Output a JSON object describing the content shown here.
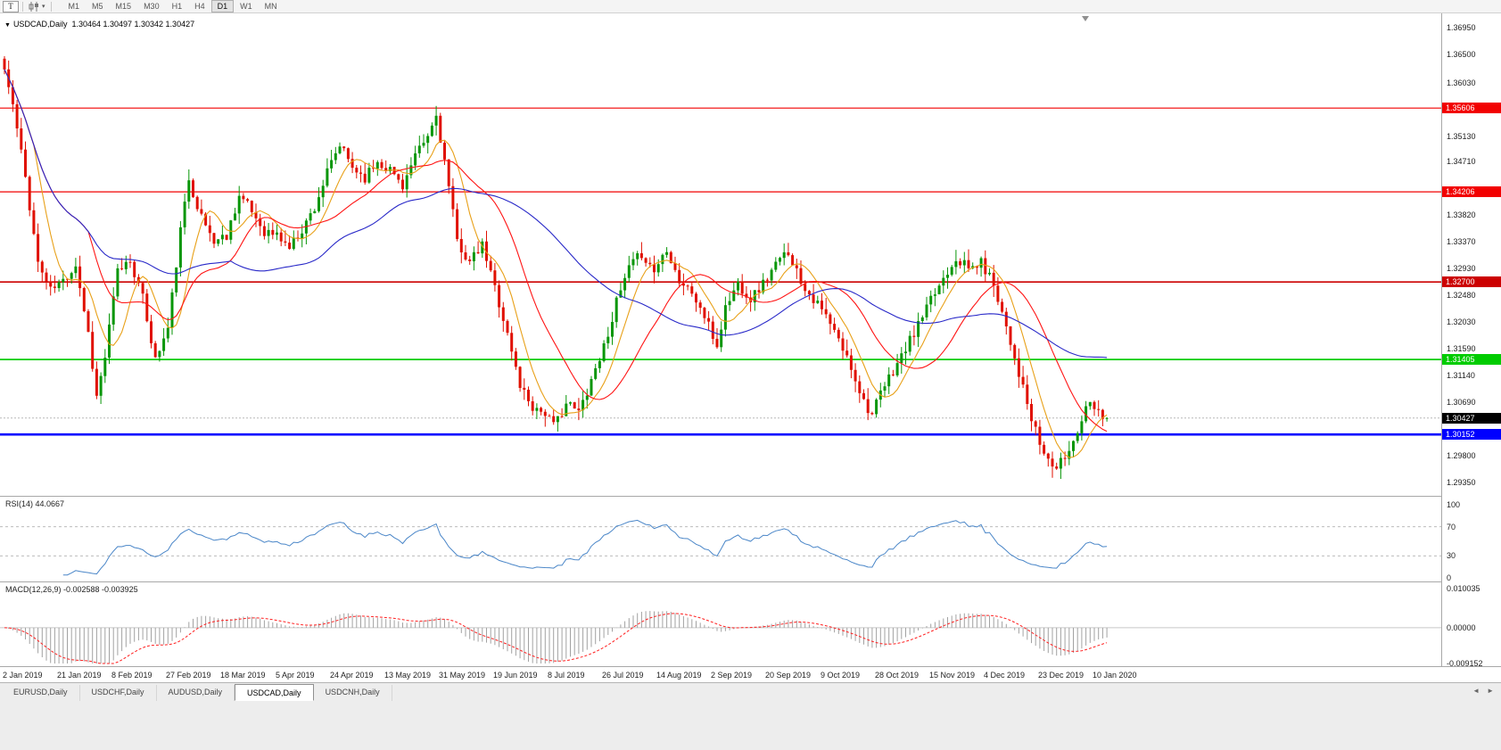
{
  "toolbar": {
    "chart_type_button": "T",
    "dropdown_icon": "▾",
    "timeframes": [
      "M1",
      "M5",
      "M15",
      "M30",
      "H1",
      "H4",
      "D1",
      "W1",
      "MN"
    ],
    "active_timeframe": "D1"
  },
  "chart_header": {
    "collapse_icon": "▼",
    "symbol_title": "USDCAD,Daily",
    "ohlc_values": "1.30464 1.30497 1.30342 1.30427"
  },
  "price_axis": {
    "ticks": [
      "1.36950",
      "1.36500",
      "1.36030",
      "1.35130",
      "1.34710",
      "1.33820",
      "1.33370",
      "1.32930",
      "1.32480",
      "1.32030",
      "1.31590",
      "1.31140",
      "1.30690",
      "1.29800",
      "1.29350"
    ],
    "tick_prices": [
      1.3695,
      1.365,
      1.3603,
      1.3513,
      1.3471,
      1.3382,
      1.3337,
      1.3293,
      1.3248,
      1.3203,
      1.3159,
      1.3114,
      1.3069,
      1.298,
      1.2935
    ]
  },
  "chart_data": {
    "type": "candlestick",
    "symbol": "USDCAD",
    "period": "Daily",
    "title": "USDCAD,Daily 1.30464 1.30497 1.30342 1.30427",
    "bars": 264,
    "ylim": [
      1.2935,
      1.3695
    ],
    "bull_color": "#089608",
    "bear_color": "#e01000",
    "noise": {
      "close": 0.0009,
      "wick": 0.0019,
      "seed": 11
    },
    "close_path_anchors": [
      [
        0,
        1.3625
      ],
      [
        2,
        1.3565
      ],
      [
        5,
        1.3445
      ],
      [
        8,
        1.3302
      ],
      [
        11,
        1.3256
      ],
      [
        14,
        1.3272
      ],
      [
        17,
        1.33
      ],
      [
        20,
        1.3185
      ],
      [
        22,
        1.3078
      ],
      [
        24,
        1.3145
      ],
      [
        27,
        1.3288
      ],
      [
        30,
        1.3308
      ],
      [
        33,
        1.3242
      ],
      [
        36,
        1.314
      ],
      [
        39,
        1.3192
      ],
      [
        42,
        1.3355
      ],
      [
        44,
        1.3442
      ],
      [
        47,
        1.3378
      ],
      [
        50,
        1.3338
      ],
      [
        53,
        1.3348
      ],
      [
        56,
        1.3415
      ],
      [
        59,
        1.3388
      ],
      [
        62,
        1.3355
      ],
      [
        65,
        1.3348
      ],
      [
        68,
        1.3328
      ],
      [
        71,
        1.3358
      ],
      [
        74,
        1.3395
      ],
      [
        77,
        1.3452
      ],
      [
        80,
        1.3498
      ],
      [
        83,
        1.3462
      ],
      [
        86,
        1.3445
      ],
      [
        89,
        1.3472
      ],
      [
        92,
        1.3458
      ],
      [
        95,
        1.3432
      ],
      [
        98,
        1.3478
      ],
      [
        101,
        1.3512
      ],
      [
        103,
        1.3548
      ],
      [
        105,
        1.3472
      ],
      [
        108,
        1.3338
      ],
      [
        111,
        1.3302
      ],
      [
        114,
        1.333
      ],
      [
        117,
        1.3262
      ],
      [
        120,
        1.3182
      ],
      [
        123,
        1.3098
      ],
      [
        126,
        1.3062
      ],
      [
        129,
        1.3052
      ],
      [
        131,
        1.3028
      ],
      [
        134,
        1.3068
      ],
      [
        137,
        1.3052
      ],
      [
        140,
        1.3108
      ],
      [
        143,
        1.3162
      ],
      [
        146,
        1.3235
      ],
      [
        149,
        1.3292
      ],
      [
        152,
        1.3318
      ],
      [
        155,
        1.3288
      ],
      [
        158,
        1.3328
      ],
      [
        161,
        1.3272
      ],
      [
        164,
        1.3252
      ],
      [
        167,
        1.3212
      ],
      [
        170,
        1.3162
      ],
      [
        172,
        1.3228
      ],
      [
        175,
        1.3268
      ],
      [
        178,
        1.3242
      ],
      [
        181,
        1.3268
      ],
      [
        184,
        1.3298
      ],
      [
        187,
        1.3322
      ],
      [
        190,
        1.3272
      ],
      [
        193,
        1.3242
      ],
      [
        196,
        1.3212
      ],
      [
        199,
        1.3172
      ],
      [
        202,
        1.3128
      ],
      [
        205,
        1.3072
      ],
      [
        207,
        1.3048
      ],
      [
        209,
        1.3082
      ],
      [
        212,
        1.3122
      ],
      [
        215,
        1.3158
      ],
      [
        218,
        1.3198
      ],
      [
        221,
        1.3238
      ],
      [
        224,
        1.3278
      ],
      [
        227,
        1.3312
      ],
      [
        230,
        1.3292
      ],
      [
        233,
        1.3302
      ],
      [
        236,
        1.3268
      ],
      [
        239,
        1.3198
      ],
      [
        242,
        1.3118
      ],
      [
        245,
        1.3038
      ],
      [
        248,
        1.2982
      ],
      [
        251,
        1.2958
      ],
      [
        254,
        1.2988
      ],
      [
        257,
        1.3042
      ],
      [
        259,
        1.3078
      ],
      [
        261,
        1.3052
      ],
      [
        263,
        1.30427
      ]
    ],
    "moving_averages": [
      {
        "name": "fast-ma",
        "period": 8,
        "color": "#e8a018"
      },
      {
        "name": "medium-ma",
        "period": 21,
        "color": "#ff1414"
      },
      {
        "name": "slow-ma",
        "period": 55,
        "color": "#2828c8"
      }
    ],
    "horizontal_levels": [
      {
        "price": 1.35606,
        "label": "1.35606",
        "color": "#f20000",
        "width": 1.2
      },
      {
        "price": 1.34206,
        "label": "1.34206",
        "color": "#f20000",
        "width": 1.2
      },
      {
        "price": 1.327,
        "label": "1.32700",
        "color": "#cc0000",
        "width": 1.6
      },
      {
        "price": 1.31405,
        "label": "1.31405",
        "color": "#00cc00",
        "width": 1.8
      },
      {
        "price": 1.30152,
        "label": "1.30152",
        "color": "#0000ff",
        "width": 2.6
      }
    ],
    "current_price": {
      "price": 1.30427,
      "label": "1.30427",
      "tag_bg": "#000000",
      "line_color": "#b8b8b8"
    },
    "x_label_step_bars": 13,
    "indicators": {
      "rsi": {
        "period": 14,
        "value": "44.0667"
      },
      "macd": {
        "fast": 12,
        "slow": 26,
        "signal": 9,
        "values": "-0.002588 -0.003925"
      }
    }
  },
  "rsi_panel": {
    "label": "RSI(14) 44.0667",
    "axis_labels": [
      "100",
      "70",
      "30",
      "0"
    ],
    "axis_values": [
      100,
      70,
      30,
      0
    ],
    "levels": [
      70,
      30
    ],
    "line_color": "#4a86c8"
  },
  "macd_panel": {
    "label": "MACD(12,26,9) -0.002588 -0.003925",
    "axis_labels": [
      "0.010035",
      "0.00000",
      "-0.009152"
    ],
    "axis_values": [
      0.010035,
      0,
      -0.009152
    ],
    "range": [
      -0.009152,
      0.010035
    ],
    "histogram_color": "#a2a2a2",
    "signal_color": "#ff2020"
  },
  "date_axis": {
    "labels": [
      "2 Jan 2019",
      "21 Jan 2019",
      "8 Feb 2019",
      "27 Feb 2019",
      "18 Mar 2019",
      "5 Apr 2019",
      "24 Apr 2019",
      "13 May 2019",
      "31 May 2019",
      "19 Jun 2019",
      "8 Jul 2019",
      "26 Jul 2019",
      "14 Aug 2019",
      "2 Sep 2019",
      "20 Sep 2019",
      "9 Oct 2019",
      "28 Oct 2019",
      "15 Nov 2019",
      "4 Dec 2019",
      "23 Dec 2019",
      "10 Jan 2020"
    ]
  },
  "tab_bar": {
    "tabs": [
      "EURUSD,Daily",
      "USDCHF,Daily",
      "AUDUSD,Daily",
      "USDCAD,Daily",
      "USDCNH,Daily"
    ],
    "active_tab": "USDCAD,Daily",
    "scroll_left_icon": "◄",
    "scroll_right_icon": "►"
  }
}
